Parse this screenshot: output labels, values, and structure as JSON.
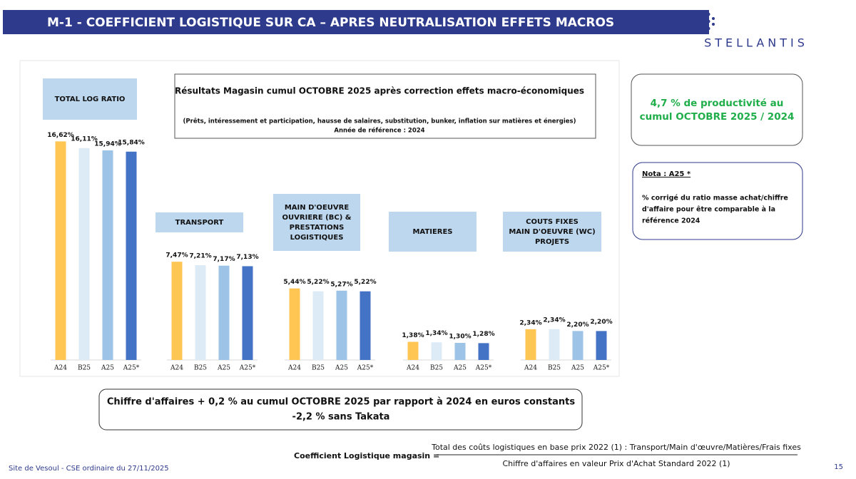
{
  "header": {
    "title": "M-1 - COEFFICIENT LOGISTIQUE SUR CA – APRES NEUTRALISATION EFFETS MACROS",
    "logo": "STELLANTIS"
  },
  "chart_data": {
    "type": "bar",
    "title": "Résultats Magasin cumul OCTOBRE 2025 après correction effets macro-économiques",
    "subtitle": [
      "(Prêts, intéressement et participation, hausse de salaires, substitution, bunker, inflation sur matières et énergies)",
      "Année de référence : 2024"
    ],
    "colors": [
      "#FFC654",
      "#DDEBF7",
      "#9DC3E6",
      "#4472C4"
    ],
    "groups": [
      {
        "name": [
          "TOTAL LOG RATIO"
        ],
        "categories": [
          "A24",
          "B25",
          "A25",
          "A25*"
        ],
        "values": [
          16.62,
          16.11,
          15.94,
          15.84
        ],
        "value_labels": [
          "16,62%",
          "16,11%",
          "15,94%",
          "15,84%"
        ]
      },
      {
        "name": [
          "TRANSPORT"
        ],
        "categories": [
          "A24",
          "B25",
          "A25",
          "A25*"
        ],
        "values": [
          7.47,
          7.21,
          7.17,
          7.13
        ],
        "value_labels": [
          "7,47%",
          "7,21%",
          "7,17%",
          "7,13%"
        ]
      },
      {
        "name": [
          "MAIN D'OEUVRE",
          "OUVRIERE  (BC) &",
          "PRESTATIONS",
          "LOGISTIQUES"
        ],
        "categories": [
          "A24",
          "B25",
          "A25",
          "A25*"
        ],
        "values": [
          5.44,
          5.22,
          5.27,
          5.22
        ],
        "value_labels": [
          "5,44%",
          "5,22%",
          "5,27%",
          "5,22%"
        ]
      },
      {
        "name": [
          "MATIERES"
        ],
        "categories": [
          "A24",
          "B25",
          "A25",
          "A25*"
        ],
        "values": [
          1.38,
          1.34,
          1.3,
          1.28
        ],
        "value_labels": [
          "1,38%",
          "1,34%",
          "1,30%",
          "1,28%"
        ]
      },
      {
        "name": [
          "COUTS FIXES",
          "MAIN D'OEUVRE (WC)",
          "PROJETS"
        ],
        "categories": [
          "A24",
          "B25",
          "A25",
          "A25*"
        ],
        "values": [
          2.34,
          2.34,
          2.2,
          2.2
        ],
        "value_labels": [
          "2,34%",
          "2,34%",
          "2,20%",
          "2,20%"
        ]
      }
    ]
  },
  "productivity": [
    "4,7 % de productivité au",
    "cumul OCTOBRE 2025 / 2024"
  ],
  "nota": {
    "title": "Nota : A25 *",
    "text": [
      "% corrigé du ratio masse achat/chiffre",
      "d'affaire pour être comparable à la",
      "référence 2024"
    ]
  },
  "summary": [
    "Chiffre d'affaires + 0,2 % au cumul OCTOBRE 2025 par rapport à 2024  en euros constants",
    "-2,2 % sans Takata"
  ],
  "formula": {
    "label": "Coefficient Logistique magasin  =",
    "numerator": "Total des coûts logistiques en base prix 2022 (1) : Transport/Main d'œuvre/Matières/Frais fixes",
    "denominator": "Chiffre d'affaires en valeur Prix d'Achat Standard 2022 (1)"
  },
  "footer": {
    "site": "Site de Vesoul - CSE ordinaire du 27/11/2025",
    "page": "15"
  }
}
